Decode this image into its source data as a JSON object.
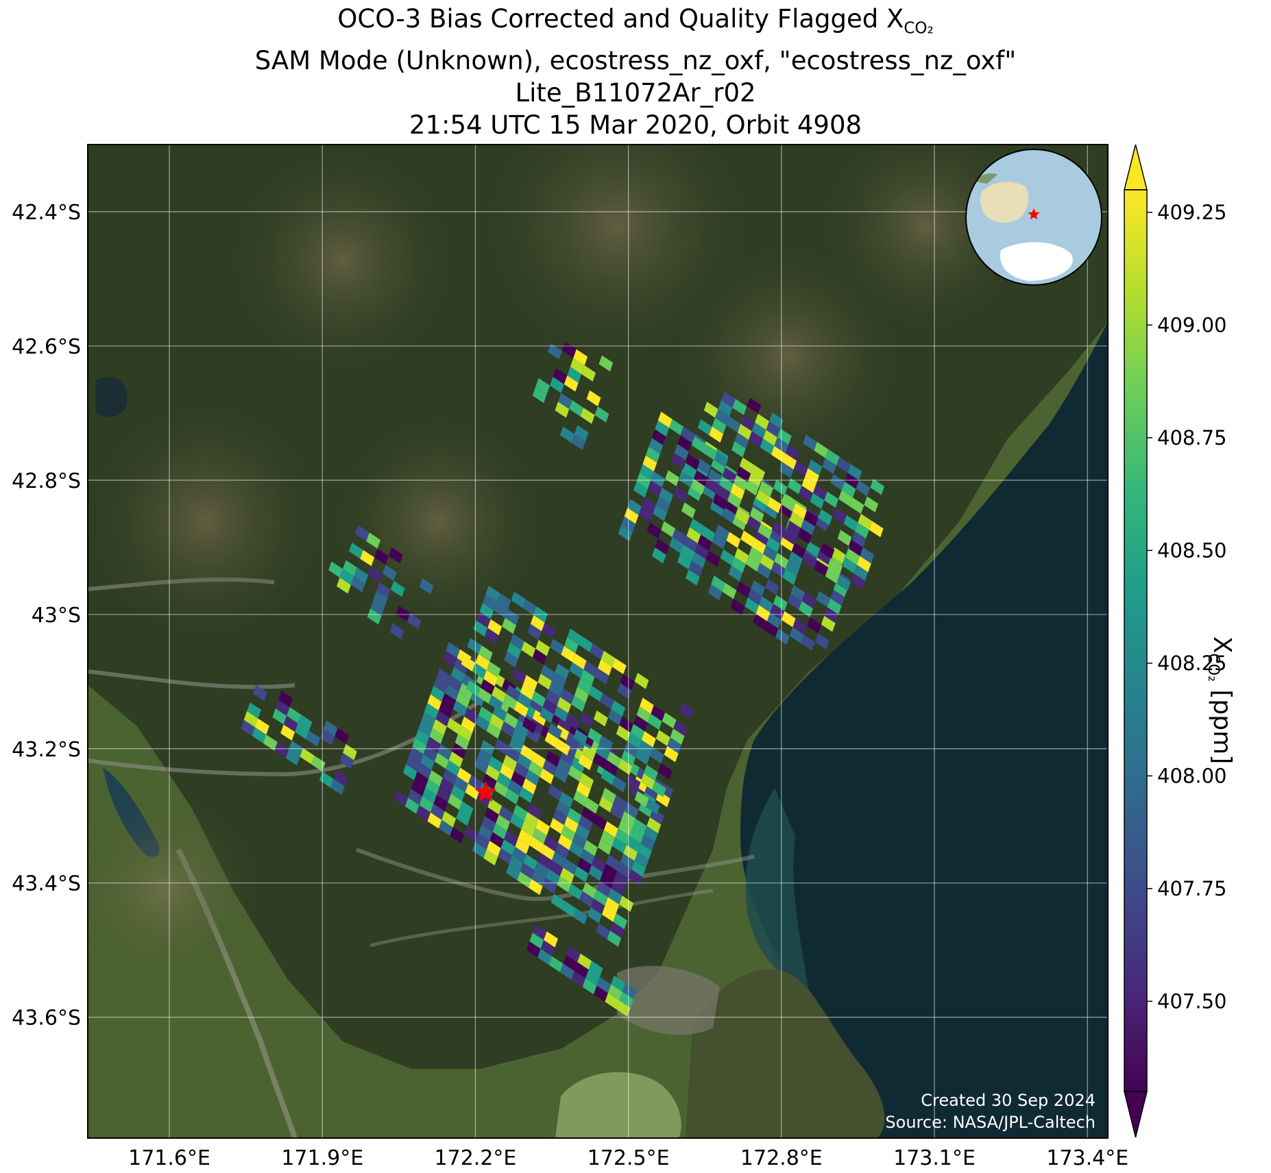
{
  "title": {
    "line1_text": "OCO-3 Bias Corrected and Quality Flagged X",
    "line1_sub": "CO₂",
    "line2": "SAM Mode (Unknown), ecostress_nz_oxf, \"ecostress_nz_oxf\"",
    "line3": "Lite_B11072Ar_r02",
    "line4": "21:54 UTC 15 Mar 2020, Orbit 4908"
  },
  "map": {
    "lon_range": [
      171.44,
      173.44
    ],
    "lat_range": [
      -43.78,
      -42.3
    ],
    "lon_ticks": [
      {
        "value": 171.6,
        "label": "171.6°E"
      },
      {
        "value": 171.9,
        "label": "171.9°E"
      },
      {
        "value": 172.2,
        "label": "172.2°E"
      },
      {
        "value": 172.5,
        "label": "172.5°E"
      },
      {
        "value": 172.8,
        "label": "172.8°E"
      },
      {
        "value": 173.1,
        "label": "173.1°E"
      },
      {
        "value": 173.4,
        "label": "173.4°E"
      }
    ],
    "lat_ticks": [
      {
        "value": -42.4,
        "label": "42.4°S"
      },
      {
        "value": -42.6,
        "label": "42.6°S"
      },
      {
        "value": -42.8,
        "label": "42.8°S"
      },
      {
        "value": -43.0,
        "label": "43°S"
      },
      {
        "value": -43.2,
        "label": "43.2°S"
      },
      {
        "value": -43.4,
        "label": "43.4°S"
      },
      {
        "value": -43.6,
        "label": "43.6°S"
      }
    ],
    "target_site": {
      "lon": 172.22,
      "lat": -43.265,
      "marker": "red-star",
      "color": "#ff0000"
    },
    "basemap": "satellite imagery, Canterbury New Zealand, mountains west, ocean east"
  },
  "inset_globe": {
    "feature": "Australia, New Zealand and Antarctica",
    "marker": "red-star"
  },
  "colorbar": {
    "label_text": "X",
    "label_sub": "CO₂",
    "label_unit": " [ppm]",
    "colormap": "viridis",
    "range": [
      407.3,
      409.3
    ],
    "extend": "both",
    "ticks": [
      {
        "value": 407.5,
        "label": "407.50"
      },
      {
        "value": 407.75,
        "label": "407.75"
      },
      {
        "value": 408.0,
        "label": "408.00"
      },
      {
        "value": 408.25,
        "label": "408.25"
      },
      {
        "value": 408.5,
        "label": "408.50"
      },
      {
        "value": 408.75,
        "label": "408.75"
      },
      {
        "value": 409.0,
        "label": "409.00"
      },
      {
        "value": 409.25,
        "label": "409.25"
      }
    ]
  },
  "credits": {
    "created": "Created 30 Sep 2024",
    "source": "Source: NASA/JPL-Caltech"
  }
}
